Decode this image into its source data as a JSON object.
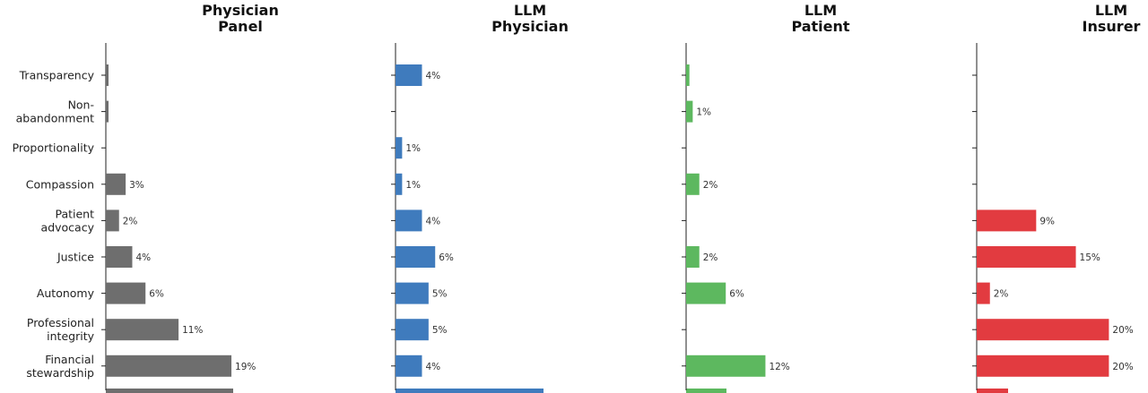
{
  "chart_data": {
    "type": "bar",
    "orientation": "horizontal",
    "categories": [
      "Transparency",
      "Non-\nabandonment",
      "Proportionality",
      "Compassion",
      "Patient\nadvocacy",
      "Justice",
      "Autonomy",
      "Professional\nintegrity",
      "Financial\nstewardship"
    ],
    "xlim": [
      0,
      25
    ],
    "panels": [
      {
        "title": "Physician\nPanel",
        "color": "#6e6e6e",
        "values": [
          0.3,
          0.3,
          0,
          3,
          2,
          4,
          6,
          11,
          19
        ],
        "labels": [
          "",
          "",
          "",
          "3%",
          "2%",
          "4%",
          "6%",
          "11%",
          "19%"
        ]
      },
      {
        "title": "LLM\nPhysician",
        "color": "#3f7bbd",
        "values": [
          4,
          0,
          1,
          1,
          4,
          6,
          5,
          5,
          4
        ],
        "labels": [
          "4%",
          "",
          "1%",
          "1%",
          "4%",
          "6%",
          "5%",
          "5%",
          "4%"
        ]
      },
      {
        "title": "LLM\nPatient",
        "color": "#5db85f",
        "values": [
          0.5,
          1,
          0,
          2,
          0,
          2,
          6,
          0,
          12
        ],
        "labels": [
          "",
          "1%",
          "",
          "2%",
          "",
          "2%",
          "6%",
          "",
          "12%"
        ]
      },
      {
        "title": "LLM\nInsurer",
        "color": "#e23b40",
        "values": [
          0,
          0,
          0,
          0,
          9,
          15,
          2,
          20,
          20
        ],
        "labels": [
          "",
          "",
          "",
          "",
          "9%",
          "15%",
          "2%",
          "20%",
          "20%"
        ]
      }
    ]
  }
}
